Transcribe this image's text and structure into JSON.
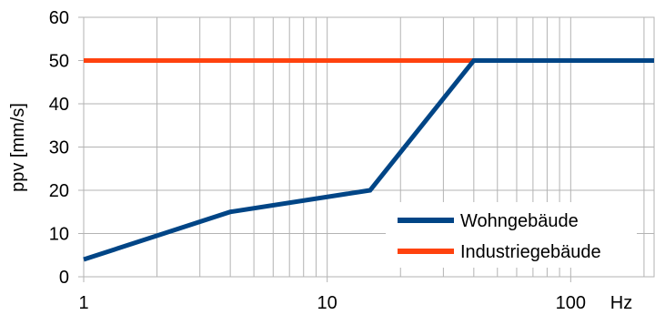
{
  "chart_data": {
    "type": "line",
    "x_scale": "log",
    "xlim": [
      1,
      220
    ],
    "ylim": [
      0,
      60
    ],
    "yticks": [
      0,
      10,
      20,
      30,
      40,
      50,
      60
    ],
    "xticks": [
      1,
      10,
      100
    ],
    "xtick_labels": [
      "1",
      "10",
      "100"
    ],
    "ytick_labels": [
      "0",
      "10",
      "20",
      "30",
      "40",
      "50",
      "60"
    ],
    "xlabel": "Hz",
    "ylabel": "ppv [mm/s]",
    "grid": true,
    "legend_position": "bottom-right",
    "series": [
      {
        "name": "Wohngebäude",
        "color": "#004586",
        "points": [
          [
            1,
            4
          ],
          [
            4,
            15
          ],
          [
            15,
            20
          ],
          [
            40,
            50
          ],
          [
            220,
            50
          ]
        ]
      },
      {
        "name": "Industriegebäude",
        "color": "#ff420e",
        "points": [
          [
            1,
            50
          ],
          [
            40,
            50
          ]
        ]
      }
    ]
  }
}
